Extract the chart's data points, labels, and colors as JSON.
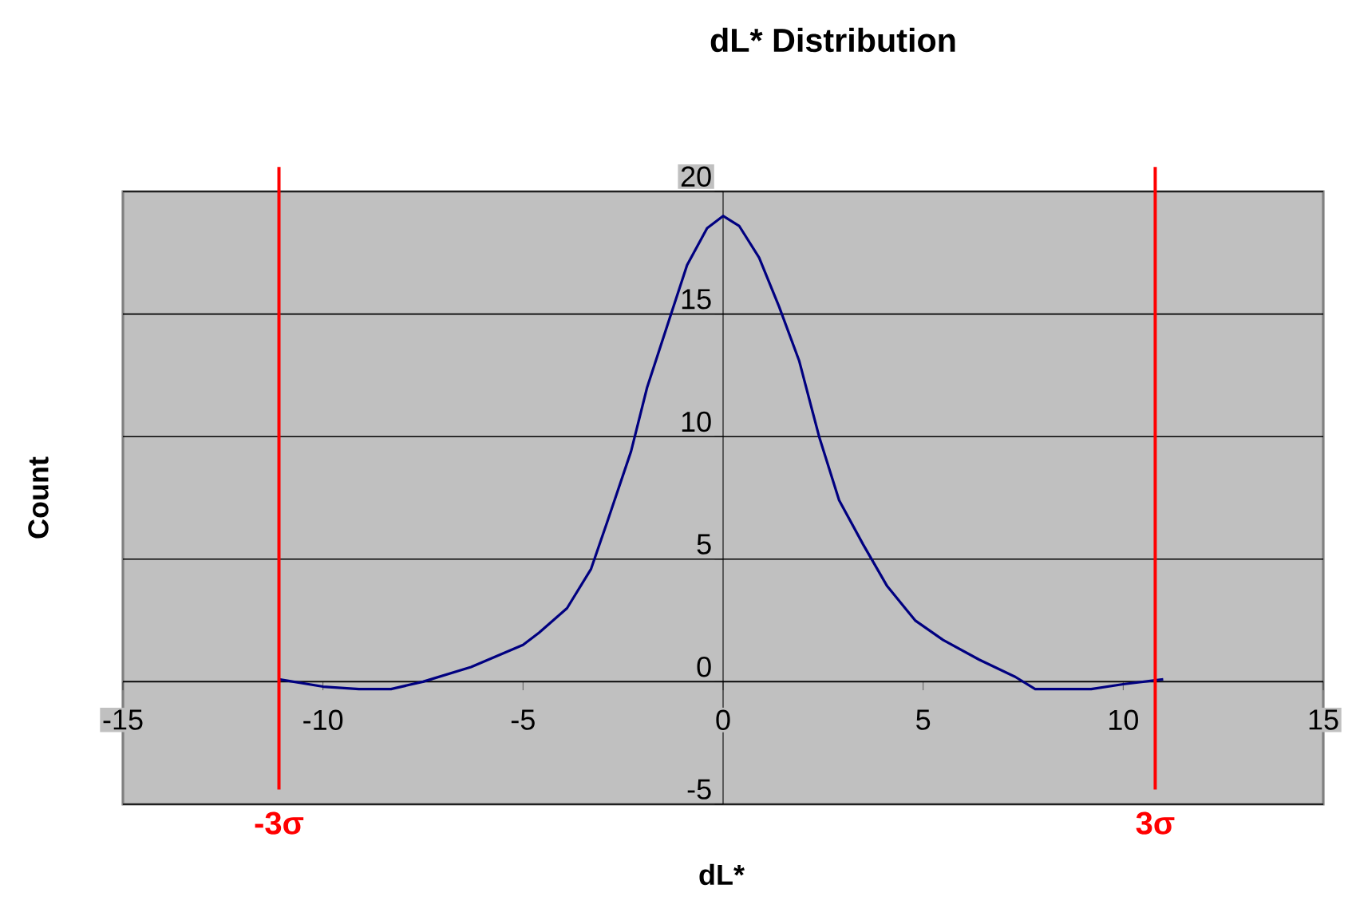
{
  "chart_data": {
    "type": "line",
    "title": "dL* Distribution",
    "xlabel": "dL*",
    "ylabel": "Count",
    "x": [
      -11.1,
      -10,
      -9.1,
      -8.3,
      -7.5,
      -6.3,
      -5,
      -4.6,
      -3.9,
      -3.3,
      -2.9,
      -2.3,
      -1.9,
      -1.3,
      -0.9,
      -0.4,
      0,
      0.4,
      0.9,
      1.4,
      1.9,
      2.4,
      2.9,
      3.5,
      4.1,
      4.8,
      5.5,
      6.4,
      7.3,
      7.8,
      9.2,
      10,
      11
    ],
    "values": [
      0.1,
      -0.2,
      -0.3,
      -0.3,
      0,
      0.6,
      1.5,
      2,
      3,
      4.6,
      6.5,
      9.4,
      12,
      15,
      17,
      18.5,
      19,
      18.6,
      17.3,
      15.3,
      13.1,
      10,
      7.4,
      5.6,
      3.9,
      2.5,
      1.7,
      0.9,
      0.2,
      -0.3,
      -0.3,
      -0.1,
      0.1
    ],
    "color": "#000080",
    "marker": "none",
    "line_style": "solid",
    "xlim": [
      -15,
      15
    ],
    "xticks": [
      -15,
      -10,
      -5,
      0,
      5,
      10,
      15
    ],
    "ylim": [
      -5,
      20
    ],
    "yticks": [
      -5,
      0,
      5,
      10,
      15,
      20
    ],
    "grid": "y",
    "ref_lines": [
      {
        "axis": "x",
        "value": -11.1,
        "label": "-3σ",
        "color": "#ff0000"
      },
      {
        "axis": "x",
        "value": 10.8,
        "label": "3σ",
        "color": "#ff0000"
      }
    ]
  }
}
